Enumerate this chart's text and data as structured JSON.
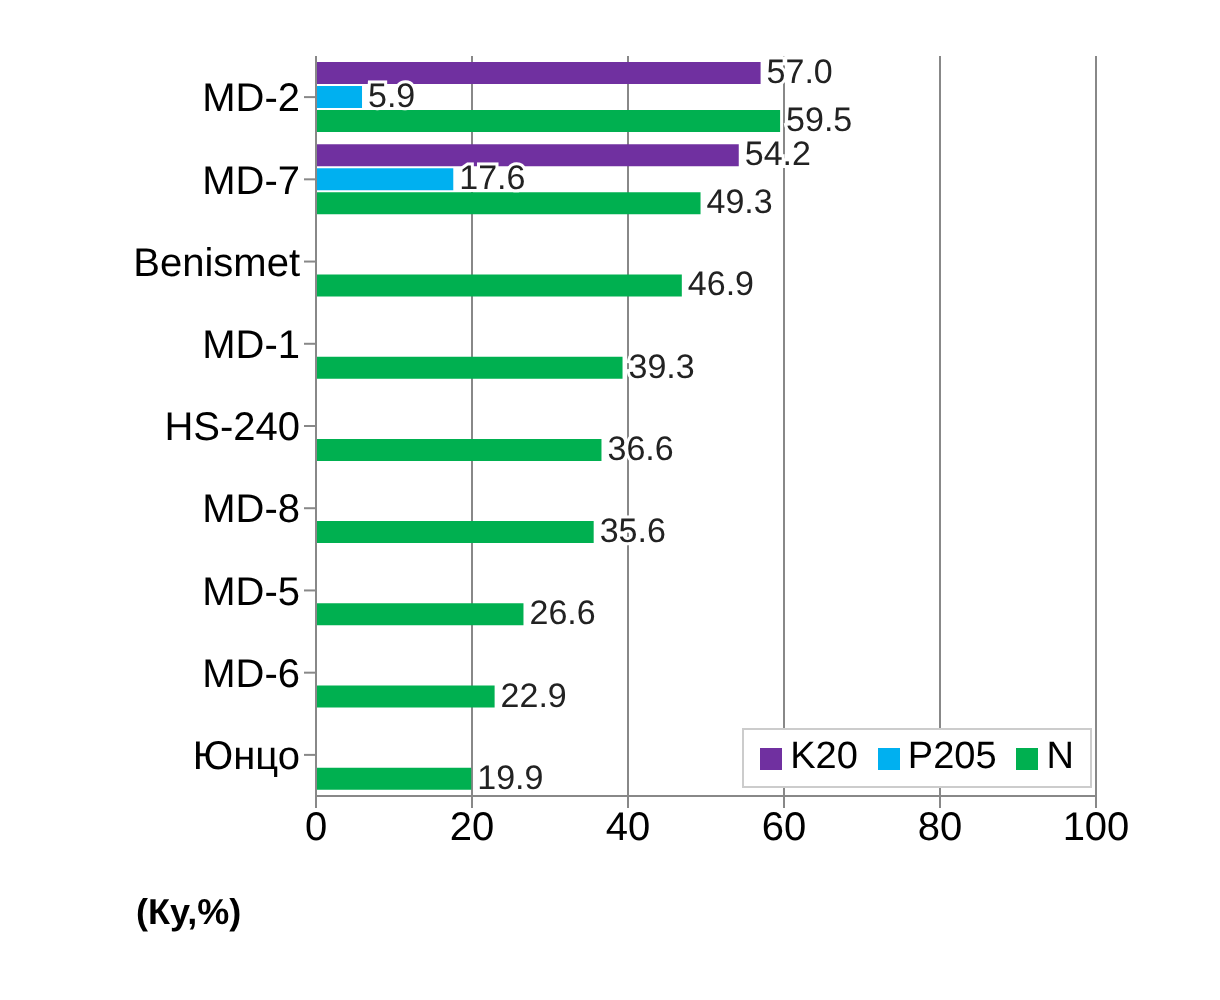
{
  "chart_data": {
    "type": "bar",
    "orientation": "horizontal",
    "xlabel": "(Ку,%)",
    "categories": [
      "MD-2",
      "MD-7",
      "Benismet",
      "MD-1",
      "HS-240",
      "MD-8",
      "MD-5",
      "MD-6",
      "Юнцо"
    ],
    "series": [
      {
        "name": "K20",
        "color": "#7030a0",
        "values": [
          57.0,
          54.2,
          null,
          null,
          null,
          null,
          null,
          null,
          null
        ],
        "value_labels": [
          "57.0",
          "54.2",
          null,
          null,
          null,
          null,
          null,
          null,
          null
        ]
      },
      {
        "name": "P205",
        "color": "#00b0f0",
        "values": [
          5.9,
          17.6,
          null,
          null,
          null,
          null,
          null,
          null,
          null
        ],
        "value_labels": [
          "5.9",
          "17.6",
          null,
          null,
          null,
          null,
          null,
          null,
          null
        ]
      },
      {
        "name": "N",
        "color": "#00b050",
        "values": [
          59.5,
          49.3,
          46.9,
          39.3,
          36.6,
          35.6,
          26.6,
          22.9,
          19.9
        ],
        "value_labels": [
          "59.5",
          "49.3",
          "46.9",
          "39.3",
          "36.6",
          "35.6",
          "26.6",
          "22.9",
          "19.9"
        ]
      }
    ],
    "xlim": [
      0,
      100
    ],
    "xticks": [
      0,
      20,
      40,
      60,
      80,
      100
    ],
    "grid": "x",
    "legend": "bottom right"
  }
}
